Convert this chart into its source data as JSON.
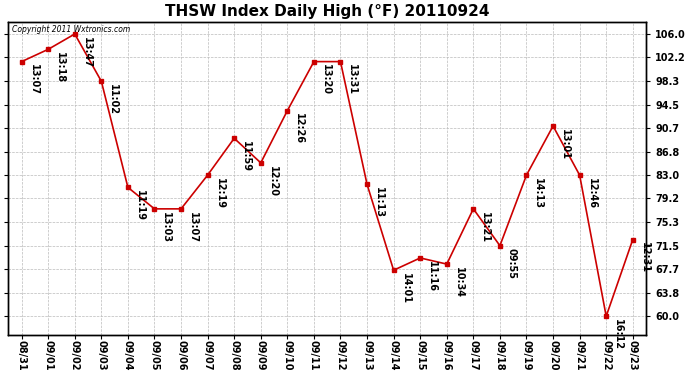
{
  "title": "THSW Index Daily High (°F) 20110924",
  "copyright": "Copyright 2011 Wxtronics.com",
  "dates": [
    "08/31",
    "09/01",
    "09/02",
    "09/03",
    "09/04",
    "09/05",
    "09/06",
    "09/07",
    "09/08",
    "09/09",
    "09/10",
    "09/11",
    "09/12",
    "09/13",
    "09/14",
    "09/15",
    "09/16",
    "09/17",
    "09/18",
    "09/19",
    "09/20",
    "09/21",
    "09/22",
    "09/23"
  ],
  "values": [
    101.5,
    103.5,
    106.0,
    98.3,
    81.0,
    77.5,
    77.5,
    83.0,
    89.0,
    85.0,
    93.5,
    101.5,
    101.5,
    81.5,
    67.5,
    69.5,
    68.5,
    77.5,
    71.5,
    83.0,
    91.0,
    83.0,
    60.0,
    72.5
  ],
  "labels": [
    "13:07",
    "13:18",
    "13:47",
    "11:02",
    "11:19",
    "13:03",
    "13:07",
    "12:19",
    "11:59",
    "12:20",
    "12:26",
    "13:20",
    "13:31",
    "11:13",
    "14:01",
    "11:16",
    "10:34",
    "13:21",
    "09:55",
    "14:13",
    "13:01",
    "12:46",
    "16:12",
    "12:31"
  ],
  "yticks": [
    60.0,
    63.8,
    67.7,
    71.5,
    75.3,
    79.2,
    83.0,
    86.8,
    90.7,
    94.5,
    98.3,
    102.2,
    106.0
  ],
  "line_color": "#cc0000",
  "marker_color": "#cc0000",
  "bg_color": "#ffffff",
  "grid_color": "#bbbbbb",
  "title_fontsize": 11,
  "tick_fontsize": 7,
  "label_fontsize": 7,
  "ylim_min": 57,
  "ylim_max": 108
}
